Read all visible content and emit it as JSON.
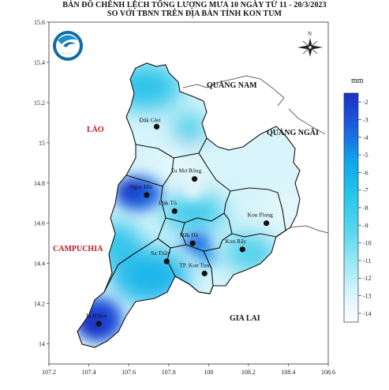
{
  "title_line1": "BẢN ĐỒ CHÊNH LỆCH TỔNG LƯỢNG MƯA 10 NGÀY TỪ 11 - 20/3/2023",
  "title_line2": "SO VỚI TBNN TRÊN ĐỊA BÀN TỈNH KON TUM",
  "axes": {
    "x_ticks": [
      "107.2",
      "107.4",
      "107.6",
      "107.8",
      "108",
      "108.2",
      "108.4",
      "108.6"
    ],
    "y_ticks": [
      "15.6",
      "15.4",
      "15.2",
      "15",
      "14.8",
      "14.6",
      "14.4",
      "14.2",
      "14"
    ]
  },
  "colorbar": {
    "unit": "mm",
    "ticks": [
      "-2",
      "-3",
      "-4",
      "-5",
      "-6",
      "-7",
      "-8",
      "-9",
      "-10",
      "-11",
      "-12",
      "-13",
      "-14"
    ],
    "range": [
      -14.5,
      -1.5
    ],
    "colors": {
      "low": "#ffffff",
      "mid_low": "#c8f3fa",
      "mid": "#57d6ee",
      "mid_high": "#0fb4e8",
      "high": "#1b5fe0",
      "max": "#1d2fc8"
    }
  },
  "regions": {
    "laos": "LÀO",
    "cambodia": "CAMPUCHIA",
    "quang_nam": "QUẢNG NAM",
    "quang_ngai": "QUẢNG NGÃI",
    "gia_lai": "GIA LAI"
  },
  "stations": [
    {
      "name": "Đăk Glei",
      "lon": 107.74,
      "lat": 15.08
    },
    {
      "name": "Tu Mơ Rông",
      "lon": 107.93,
      "lat": 14.82
    },
    {
      "name": "Ngọc Hồi",
      "lon": 107.69,
      "lat": 14.74
    },
    {
      "name": "Đăk Tô",
      "lon": 107.83,
      "lat": 14.66
    },
    {
      "name": "Kon Plong",
      "lon": 108.29,
      "lat": 14.6
    },
    {
      "name": "Đăk Hà",
      "lon": 107.92,
      "lat": 14.5
    },
    {
      "name": "Kon Rẫy",
      "lon": 108.17,
      "lat": 14.47
    },
    {
      "name": "Sa Thầy",
      "lon": 107.79,
      "lat": 14.41
    },
    {
      "name": "TP. Kon Tum",
      "lon": 107.98,
      "lat": 14.35
    },
    {
      "name": "Ia H'drai",
      "lon": 107.45,
      "lat": 14.1
    }
  ],
  "north_arrow_label": "N",
  "logo_name": "hydromet-logo"
}
